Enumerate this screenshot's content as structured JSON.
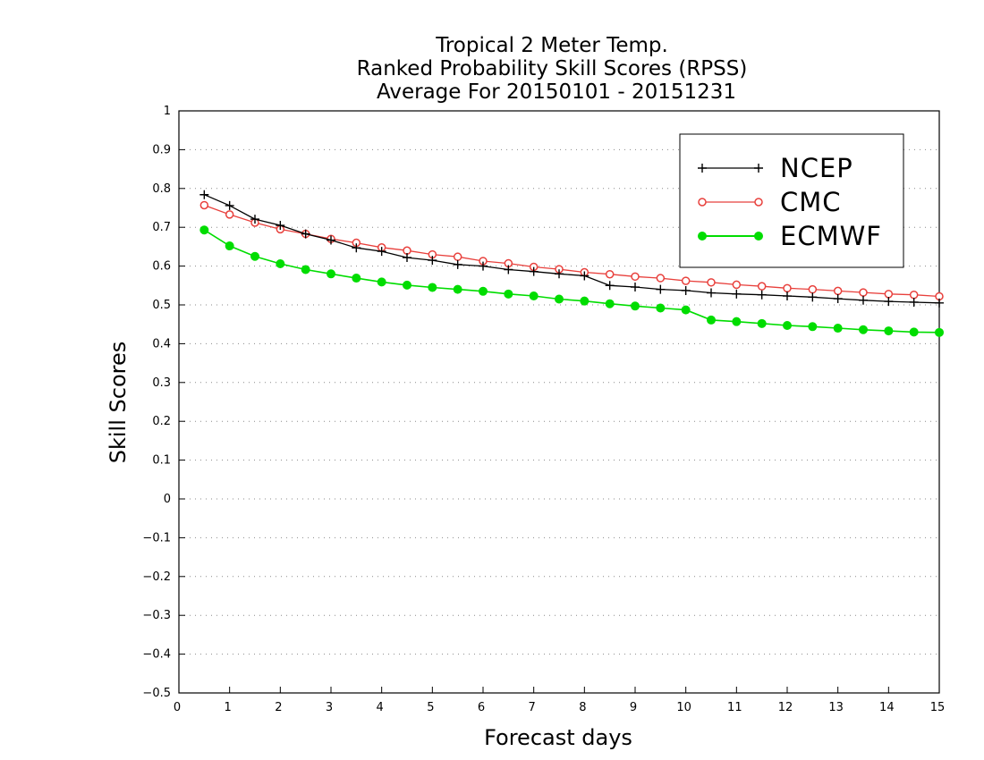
{
  "chart_data": {
    "type": "line",
    "title": [
      "Tropical 2 Meter Temp.",
      "Ranked Probability Skill Scores (RPSS)",
      "Average For 20150101 - 20151231"
    ],
    "xlabel": "Forecast days",
    "ylabel": "Skill Scores",
    "xlim": [
      0,
      15
    ],
    "ylim": [
      -0.5,
      1
    ],
    "xticks": [
      0,
      1,
      2,
      3,
      4,
      5,
      6,
      7,
      8,
      9,
      10,
      11,
      12,
      13,
      14,
      15
    ],
    "xtick_labels": [
      "0",
      "1",
      "2",
      "3",
      "4",
      "5",
      "6",
      "7",
      "8",
      "9",
      "10",
      "11",
      "12",
      "13",
      "14",
      "15"
    ],
    "yticks": [
      1,
      0.9,
      0.8,
      0.7,
      0.6,
      0.5,
      0.4,
      0.3,
      0.2,
      0.1,
      0,
      -0.1,
      -0.2,
      -0.3,
      -0.4,
      -0.5
    ],
    "ytick_labels": [
      "1",
      "0.9",
      "0.8",
      "0.7",
      "0.6",
      "0.5",
      "0.4",
      "0.3",
      "0.2",
      "0.1",
      "0",
      "−0.1",
      "−0.2",
      "−0.3",
      "−0.4",
      "−0.5"
    ],
    "grid": "horizontal dotted",
    "legend_position": "top-right",
    "x": [
      0.5,
      1,
      1.5,
      2,
      2.5,
      3,
      3.5,
      4,
      4.5,
      5,
      5.5,
      6,
      6.5,
      7,
      7.5,
      8,
      8.5,
      9,
      9.5,
      10,
      10.5,
      11,
      11.5,
      12,
      12.5,
      13,
      13.5,
      14,
      14.5,
      15
    ],
    "series": [
      {
        "name": "NCEP",
        "color": "#000000",
        "marker": "plus",
        "values": [
          0.784,
          0.756,
          0.721,
          0.705,
          0.683,
          0.667,
          0.647,
          0.638,
          0.622,
          0.615,
          0.604,
          0.6,
          0.591,
          0.586,
          0.58,
          0.575,
          0.55,
          0.546,
          0.54,
          0.537,
          0.531,
          0.528,
          0.526,
          0.523,
          0.52,
          0.516,
          0.512,
          0.509,
          0.507,
          0.505
        ]
      },
      {
        "name": "CMC",
        "color": "#e8403c",
        "marker": "open-circle",
        "values": [
          0.757,
          0.733,
          0.712,
          0.695,
          0.683,
          0.67,
          0.66,
          0.648,
          0.64,
          0.63,
          0.624,
          0.613,
          0.607,
          0.598,
          0.592,
          0.584,
          0.579,
          0.573,
          0.569,
          0.562,
          0.558,
          0.552,
          0.548,
          0.543,
          0.54,
          0.536,
          0.532,
          0.528,
          0.526,
          0.522
        ]
      },
      {
        "name": "ECMWF",
        "color": "#00dd00",
        "marker": "filled-circle",
        "values": [
          0.693,
          0.652,
          0.625,
          0.606,
          0.591,
          0.58,
          0.569,
          0.559,
          0.551,
          0.545,
          0.54,
          0.535,
          0.528,
          0.523,
          0.515,
          0.51,
          0.503,
          0.497,
          0.492,
          0.487,
          0.461,
          0.457,
          0.452,
          0.447,
          0.444,
          0.44,
          0.436,
          0.433,
          0.43,
          0.429
        ]
      }
    ]
  }
}
